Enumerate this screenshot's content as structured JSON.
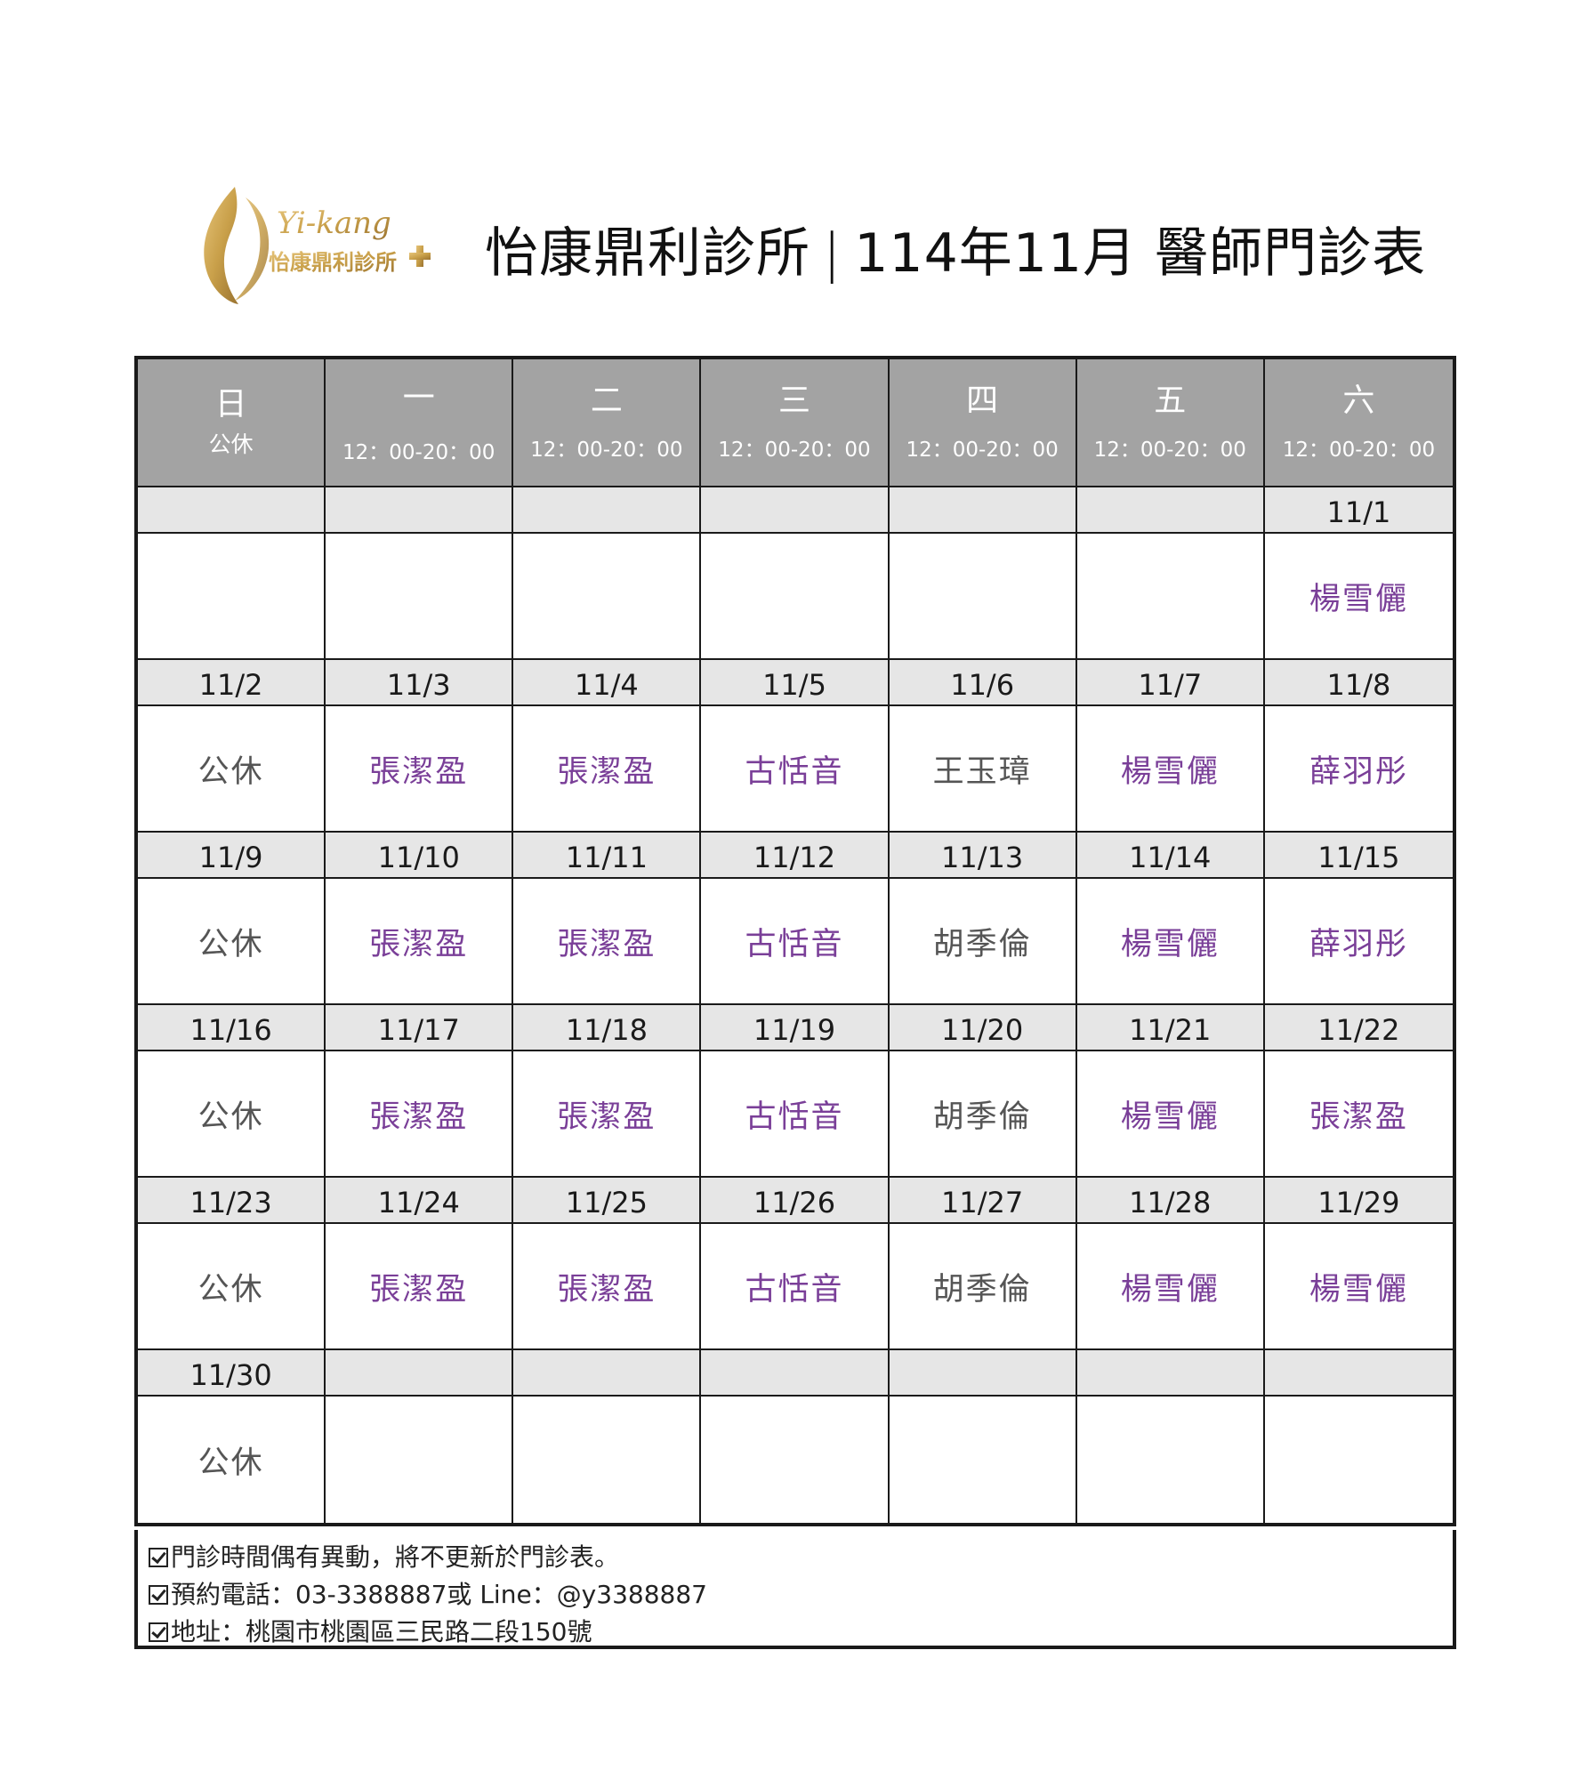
{
  "header": {
    "logo_script": "Yi-kang",
    "logo_name": "怡康鼎利診所",
    "clinic_name": "怡康鼎利診所",
    "separator": "|",
    "schedule_title": "114年11月 醫師門診表"
  },
  "days": [
    {
      "name": "日",
      "hours": "公休"
    },
    {
      "name": "一",
      "hours": "12：00-20：00"
    },
    {
      "name": "二",
      "hours": "12：00-20：00"
    },
    {
      "name": "三",
      "hours": "12：00-20：00"
    },
    {
      "name": "四",
      "hours": "12：00-20：00"
    },
    {
      "name": "五",
      "hours": "12：00-20：00"
    },
    {
      "name": "六",
      "hours": "12：00-20：00"
    }
  ],
  "weeks": [
    {
      "dates": [
        "",
        "",
        "",
        "",
        "",
        "",
        "11/1"
      ],
      "doctors": [
        "",
        "",
        "",
        "",
        "",
        "",
        "楊雪儷"
      ],
      "colors": [
        "",
        "",
        "",
        "",
        "",
        "",
        "purple"
      ]
    },
    {
      "dates": [
        "11/2",
        "11/3",
        "11/4",
        "11/5",
        "11/6",
        "11/7",
        "11/8"
      ],
      "doctors": [
        "公休",
        "張潔盈",
        "張潔盈",
        "古恬音",
        "王玉璋",
        "楊雪儷",
        "薛羽彤"
      ],
      "colors": [
        "gray",
        "purple",
        "purple",
        "purple",
        "gray",
        "purple",
        "purple"
      ]
    },
    {
      "dates": [
        "11/9",
        "11/10",
        "11/11",
        "11/12",
        "11/13",
        "11/14",
        "11/15"
      ],
      "doctors": [
        "公休",
        "張潔盈",
        "張潔盈",
        "古恬音",
        "胡季倫",
        "楊雪儷",
        "薛羽彤"
      ],
      "colors": [
        "gray",
        "purple",
        "purple",
        "purple",
        "gray",
        "purple",
        "purple"
      ]
    },
    {
      "dates": [
        "11/16",
        "11/17",
        "11/18",
        "11/19",
        "11/20",
        "11/21",
        "11/22"
      ],
      "doctors": [
        "公休",
        "張潔盈",
        "張潔盈",
        "古恬音",
        "胡季倫",
        "楊雪儷",
        "張潔盈"
      ],
      "colors": [
        "gray",
        "purple",
        "purple",
        "purple",
        "gray",
        "purple",
        "purple"
      ]
    },
    {
      "dates": [
        "11/23",
        "11/24",
        "11/25",
        "11/26",
        "11/27",
        "11/28",
        "11/29"
      ],
      "doctors": [
        "公休",
        "張潔盈",
        "張潔盈",
        "古恬音",
        "胡季倫",
        "楊雪儷",
        "楊雪儷"
      ],
      "colors": [
        "gray",
        "purple",
        "purple",
        "purple",
        "gray",
        "purple",
        "purple"
      ]
    },
    {
      "dates": [
        "11/30",
        "",
        "",
        "",
        "",
        "",
        ""
      ],
      "doctors": [
        "公休",
        "",
        "",
        "",
        "",
        "",
        ""
      ],
      "colors": [
        "gray",
        "",
        "",
        "",
        "",
        "",
        ""
      ]
    }
  ],
  "notes": [
    "門診時間偶有異動，將不更新於門診表。",
    "預約電話：03-3388887或 Line：@y3388887",
    "地址：桃園市桃園區三民路二段150號"
  ],
  "colors": {
    "header_bg": "#a3a3a3",
    "date_row_bg": "#e6e6e6",
    "doctor_purple": "#7a3f98",
    "closed_gray": "#555555",
    "logo_gold": "#c9a04a"
  }
}
